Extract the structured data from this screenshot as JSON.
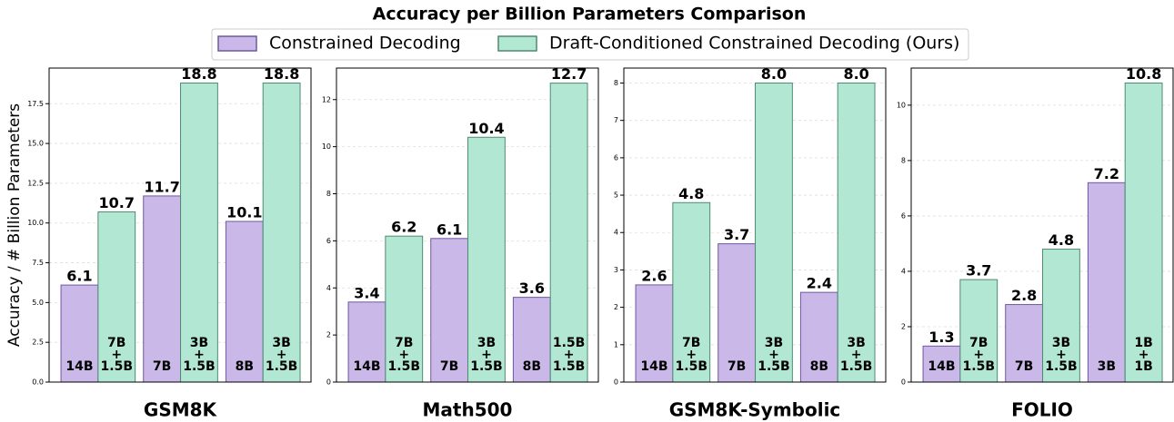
{
  "title": "Accuracy per Billion Parameters Comparison",
  "ylabel": "Accuracy / # Billion Parameters",
  "chart_data": [
    {
      "type": "bar",
      "title": "GSM8K",
      "grid": true,
      "ylim": [
        0,
        19.74
      ],
      "yticks": [
        {
          "value": 0,
          "label": "0.0"
        },
        2.5,
        {
          "value": 5,
          "label": "5.0"
        },
        7.5,
        {
          "value": 10,
          "label": "10.0"
        },
        12.5,
        {
          "value": 15,
          "label": "15.0"
        },
        17.5
      ],
      "series": [
        {
          "name": "Constrained Decoding",
          "color": "#c9b8e8",
          "edgecolor": "#6f58a0",
          "values": [
            6.1,
            11.7,
            10.1
          ],
          "value_labels": [
            "6.1",
            "11.7",
            "10.1"
          ],
          "bar_labels": [
            [
              "14B"
            ],
            [
              "7B"
            ],
            [
              "8B"
            ]
          ]
        },
        {
          "name": "Draft-Conditioned Constrained Decoding (Ours)",
          "color": "#b2e8d3",
          "edgecolor": "#4f8a72",
          "values": [
            10.7,
            18.8,
            18.8
          ],
          "value_labels": [
            "10.7",
            "18.8",
            "18.8"
          ],
          "bar_labels": [
            [
              "7B",
              "+",
              "1.5B"
            ],
            [
              "3B",
              "+",
              "1.5B"
            ],
            [
              "3B",
              "+",
              "1.5B"
            ]
          ]
        }
      ]
    },
    {
      "type": "bar",
      "title": "Math500",
      "grid": true,
      "ylim": [
        0,
        13.34
      ],
      "yticks": [
        0,
        2,
        4,
        6,
        8,
        10,
        12
      ],
      "series": [
        {
          "name": "Constrained Decoding",
          "color": "#c9b8e8",
          "edgecolor": "#6f58a0",
          "values": [
            3.4,
            6.1,
            3.6
          ],
          "value_labels": [
            "3.4",
            "6.1",
            "3.6"
          ],
          "bar_labels": [
            [
              "14B"
            ],
            [
              "7B"
            ],
            [
              "8B"
            ]
          ]
        },
        {
          "name": "Draft-Conditioned Constrained Decoding (Ours)",
          "color": "#b2e8d3",
          "edgecolor": "#4f8a72",
          "values": [
            6.2,
            10.4,
            12.7
          ],
          "value_labels": [
            "6.2",
            "10.4",
            "12.7"
          ],
          "bar_labels": [
            [
              "7B",
              "+",
              "1.5B"
            ],
            [
              "3B",
              "+",
              "1.5B"
            ],
            [
              "1.5B",
              "+",
              "1.5B"
            ]
          ]
        }
      ]
    },
    {
      "type": "bar",
      "title": "GSM8K-Symbolic",
      "grid": true,
      "ylim": [
        0,
        8.4
      ],
      "yticks": [
        0,
        1,
        2,
        3,
        4,
        5,
        6,
        7,
        8
      ],
      "series": [
        {
          "name": "Constrained Decoding",
          "color": "#c9b8e8",
          "edgecolor": "#6f58a0",
          "values": [
            2.6,
            3.7,
            2.4
          ],
          "value_labels": [
            "2.6",
            "3.7",
            "2.4"
          ],
          "bar_labels": [
            [
              "14B"
            ],
            [
              "7B"
            ],
            [
              "8B"
            ]
          ]
        },
        {
          "name": "Draft-Conditioned Constrained Decoding (Ours)",
          "color": "#b2e8d3",
          "edgecolor": "#4f8a72",
          "values": [
            4.8,
            8.0,
            8.0
          ],
          "value_labels": [
            "4.8",
            "8.0",
            "8.0"
          ],
          "bar_labels": [
            [
              "7B",
              "+",
              "1.5B"
            ],
            [
              "3B",
              "+",
              "1.5B"
            ],
            [
              "3B",
              "+",
              "1.5B"
            ]
          ]
        }
      ]
    },
    {
      "type": "bar",
      "title": "FOLIO",
      "grid": true,
      "ylim": [
        0,
        11.34
      ],
      "yticks": [
        0,
        2,
        4,
        6,
        8,
        10
      ],
      "series": [
        {
          "name": "Constrained Decoding",
          "color": "#c9b8e8",
          "edgecolor": "#6f58a0",
          "values": [
            1.3,
            2.8,
            7.2
          ],
          "value_labels": [
            "1.3",
            "2.8",
            "7.2"
          ],
          "bar_labels": [
            [
              "14B"
            ],
            [
              "7B"
            ],
            [
              "3B"
            ]
          ]
        },
        {
          "name": "Draft-Conditioned Constrained Decoding (Ours)",
          "color": "#b2e8d3",
          "edgecolor": "#4f8a72",
          "values": [
            3.7,
            4.8,
            10.8
          ],
          "value_labels": [
            "3.7",
            "4.8",
            "10.8"
          ],
          "bar_labels": [
            [
              "7B",
              "+",
              "1.5B"
            ],
            [
              "3B",
              "+",
              "1.5B"
            ],
            [
              "1B",
              "+",
              "1B"
            ]
          ]
        }
      ]
    }
  ]
}
